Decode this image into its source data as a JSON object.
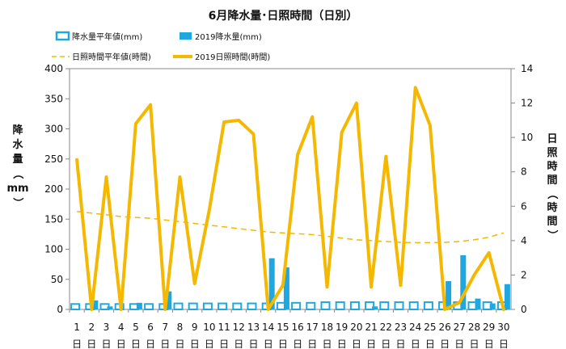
{
  "chart_data": {
    "type": "bar-line-combo",
    "title": "6月降水量･日照時間（日別）",
    "x": [
      "1",
      "2",
      "3",
      "4",
      "5",
      "6",
      "7",
      "8",
      "9",
      "10",
      "11",
      "12",
      "13",
      "14",
      "15",
      "16",
      "17",
      "18",
      "19",
      "20",
      "21",
      "22",
      "23",
      "24",
      "25",
      "26",
      "27",
      "28",
      "29",
      "30"
    ],
    "x_suffix": "日",
    "y_left": {
      "label_chars": [
        "降",
        "水",
        "量",
        "（",
        "mm",
        "）"
      ],
      "min": 0,
      "max": 400,
      "ticks": [
        0,
        50,
        100,
        150,
        200,
        250,
        300,
        350,
        400
      ]
    },
    "y_right": {
      "label_chars": [
        "日",
        "照",
        "時",
        "間",
        "（",
        "時",
        "間",
        "）"
      ],
      "min": 0,
      "max": 14,
      "ticks": [
        0,
        2,
        4,
        6,
        8,
        10,
        12,
        14
      ]
    },
    "grid": false,
    "legend": [
      {
        "key": "normal_precip",
        "label": "降水量平年値(mm)"
      },
      {
        "key": "precip_2019",
        "label": "2019降水量(mm)"
      },
      {
        "key": "normal_sun",
        "label": "日照時間平年値(時間)"
      },
      {
        "key": "sun_2019",
        "label": "2019日照時間(時間)"
      }
    ],
    "series": {
      "normal_precip": [
        9,
        9,
        9,
        9,
        9,
        9,
        9,
        10,
        10,
        10,
        10,
        10,
        10,
        10,
        11,
        11,
        11,
        12,
        12,
        12,
        12,
        12,
        12,
        12,
        12,
        12,
        12,
        12,
        12,
        12
      ],
      "precip_2019": [
        0,
        15,
        5,
        0,
        11,
        0,
        30,
        0,
        0,
        0,
        0,
        0,
        0,
        85,
        70,
        0,
        0,
        0,
        0,
        0,
        5,
        0,
        0,
        0,
        0,
        47,
        90,
        18,
        10,
        42
      ],
      "normal_sun": [
        5.7,
        5.6,
        5.5,
        5.4,
        5.35,
        5.3,
        5.2,
        5.1,
        5.0,
        4.9,
        4.8,
        4.7,
        4.6,
        4.5,
        4.45,
        4.4,
        4.35,
        4.25,
        4.15,
        4.05,
        4.0,
        3.95,
        3.9,
        3.88,
        3.88,
        3.9,
        3.95,
        4.05,
        4.2,
        4.45
      ],
      "sun_2019": [
        8.7,
        0.0,
        7.7,
        0.0,
        10.8,
        11.9,
        0.0,
        7.7,
        1.5,
        5.8,
        10.9,
        11.0,
        10.2,
        0.0,
        1.4,
        9.0,
        11.2,
        1.3,
        10.3,
        12.0,
        1.3,
        8.9,
        1.4,
        12.9,
        10.7,
        0.0,
        0.4,
        2.0,
        3.3,
        0.0
      ]
    },
    "colors": {
      "normal_precip": "#1fa8e0",
      "precip_2019": "#1fa8e0",
      "normal_sun": "#f5b800",
      "sun_2019": "#f5b800"
    }
  }
}
